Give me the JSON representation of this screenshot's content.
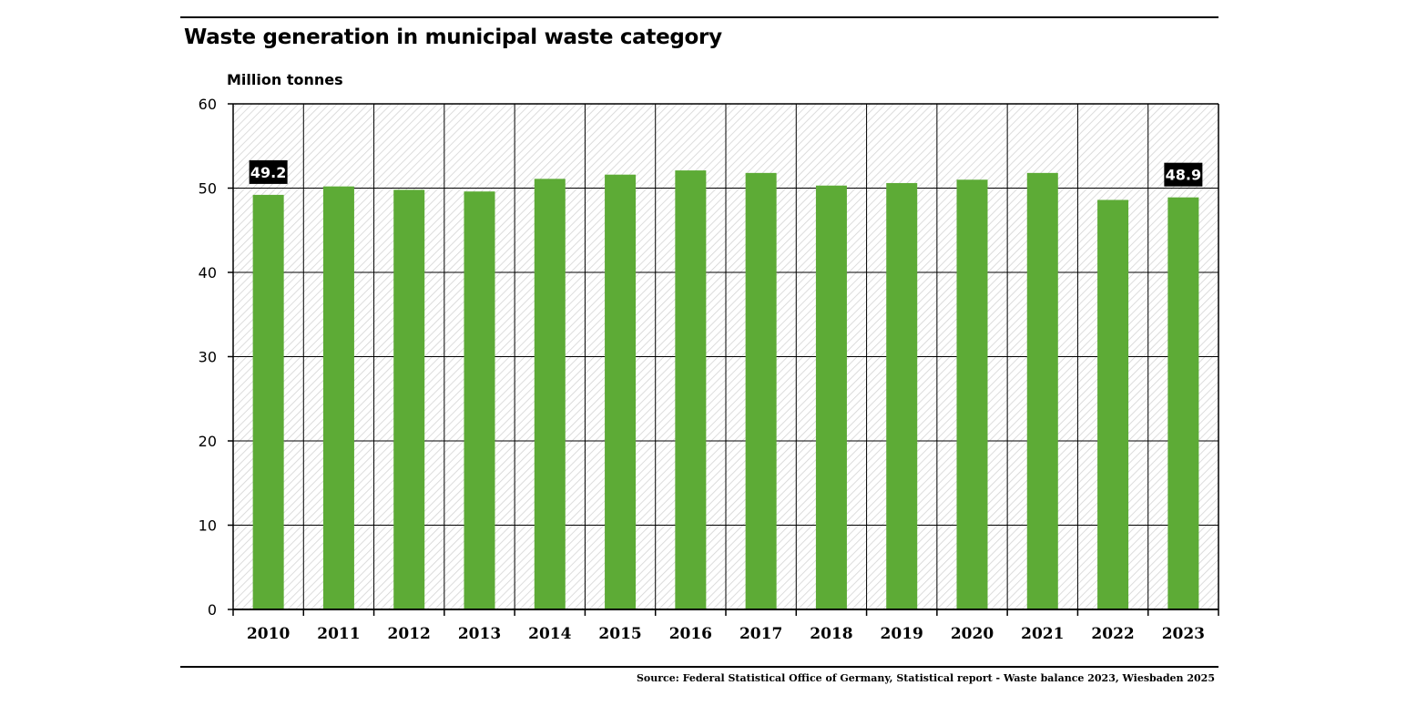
{
  "title": "Waste generation in municipal waste category",
  "source": "Source: Federal Statistical Office of Germany, Statistical report - Waste balance 2023, Wiesbaden 2025",
  "colors": {
    "bar": "#5dab36",
    "label_bg": "#000000",
    "grid": "#000000",
    "hatch": "#d9d9d9"
  },
  "chart_data": {
    "type": "bar",
    "title": "Waste generation in municipal waste category",
    "ylabel": "Million tonnes",
    "xlabel": "",
    "ylim": [
      0,
      60
    ],
    "yticks": [
      0,
      10,
      20,
      30,
      40,
      50,
      60
    ],
    "categories": [
      "2010",
      "2011",
      "2012",
      "2013",
      "2014",
      "2015",
      "2016",
      "2017",
      "2018",
      "2019",
      "2020",
      "2021",
      "2022",
      "2023"
    ],
    "values": [
      49.2,
      50.2,
      49.8,
      49.6,
      51.1,
      51.6,
      52.1,
      51.8,
      50.3,
      50.6,
      51.0,
      51.8,
      48.6,
      48.9
    ],
    "data_labels": [
      {
        "category": "2010",
        "text": "49.2"
      },
      {
        "category": "2023",
        "text": "48.9"
      }
    ],
    "grid": true
  }
}
